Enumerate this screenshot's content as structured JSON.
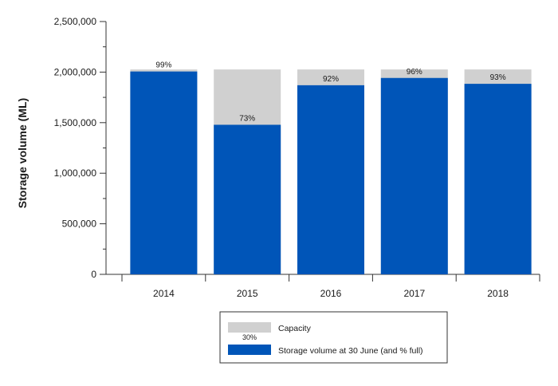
{
  "chart_data": {
    "type": "bar",
    "stacking": "overlay",
    "categories": [
      "2014",
      "2015",
      "2016",
      "2017",
      "2018"
    ],
    "series": [
      {
        "name": "Capacity",
        "color": "#d0d0d0",
        "values": [
          2026000,
          2026000,
          2026000,
          2026000,
          2026000
        ]
      },
      {
        "name": "Storage volume at 30 June (and % full)",
        "color": "#0055b8",
        "values": [
          2006000,
          1479000,
          1870000,
          1942000,
          1884000
        ],
        "data_labels": [
          "99%",
          "73%",
          "92%",
          "96%",
          "93%"
        ]
      }
    ],
    "title": "",
    "xlabel": "",
    "ylabel": "Storage volume (ML)",
    "ylim": [
      0,
      2500000
    ],
    "y_ticks": [
      {
        "value": 0,
        "label": "0"
      },
      {
        "value": 500000,
        "label": "500,000"
      },
      {
        "value": 1000000,
        "label": "1,000,000"
      },
      {
        "value": 1500000,
        "label": "1,500,000"
      },
      {
        "value": 2000000,
        "label": "2,000,000"
      },
      {
        "value": 2500000,
        "label": "2,500,000"
      }
    ],
    "grid": false,
    "legend": {
      "placement": "bottom",
      "entries": [
        {
          "label": "Capacity",
          "color": "#d0d0d0",
          "swatch_note": "30%"
        },
        {
          "label": "Storage volume at 30 June (and % full)",
          "color": "#0055b8"
        }
      ]
    }
  }
}
